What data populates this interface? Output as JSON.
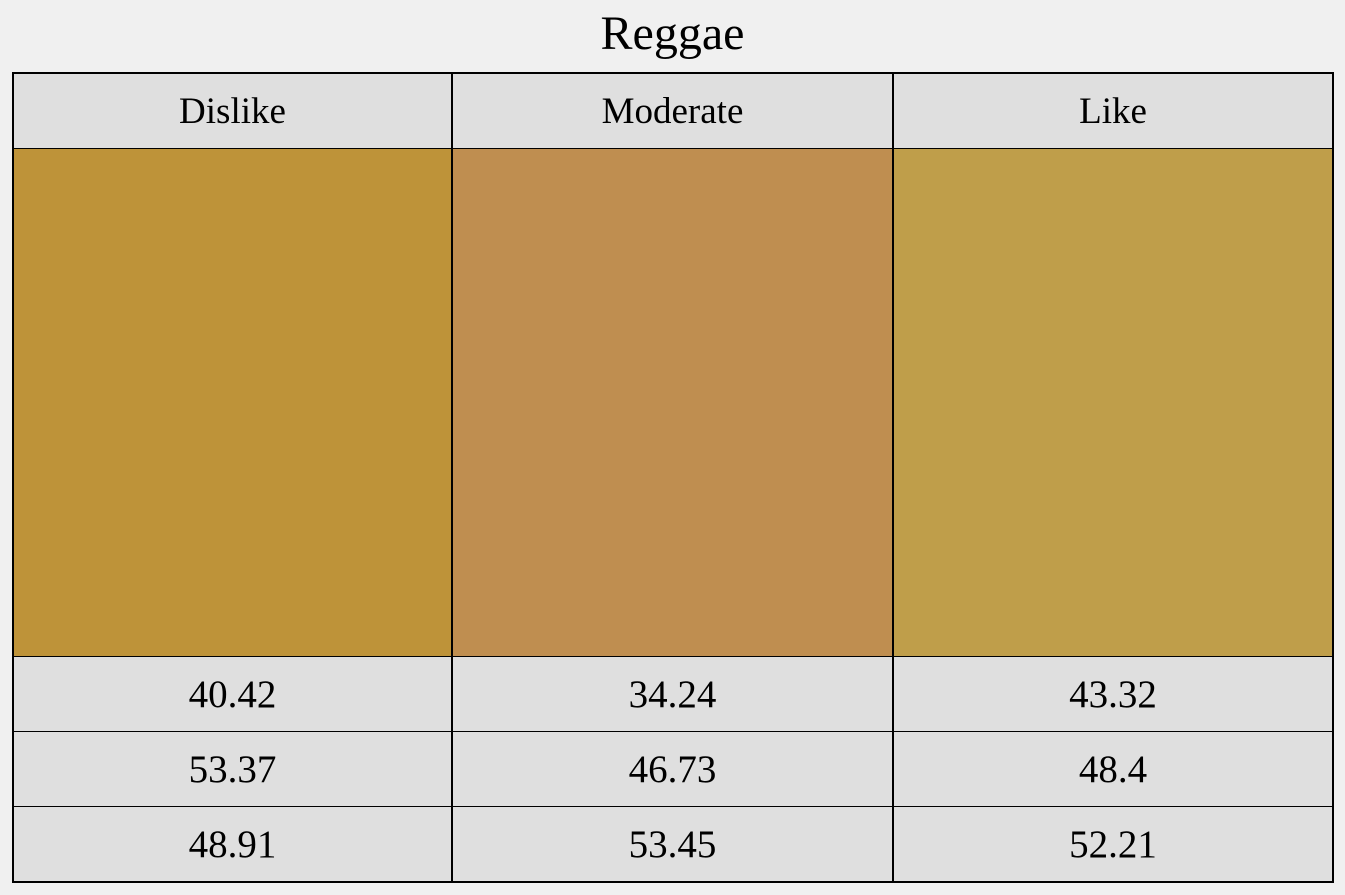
{
  "chart_data": {
    "type": "table",
    "title": "Reggae",
    "columns": [
      "Dislike",
      "Moderate",
      "Like"
    ],
    "colors": [
      "#be9339",
      "#bf8e50",
      "#bf9e4a"
    ],
    "rows": [
      [
        "40.42",
        "34.24",
        "43.32"
      ],
      [
        "53.37",
        "46.73",
        "48.4"
      ],
      [
        "48.91",
        "53.45",
        "52.21"
      ]
    ]
  }
}
